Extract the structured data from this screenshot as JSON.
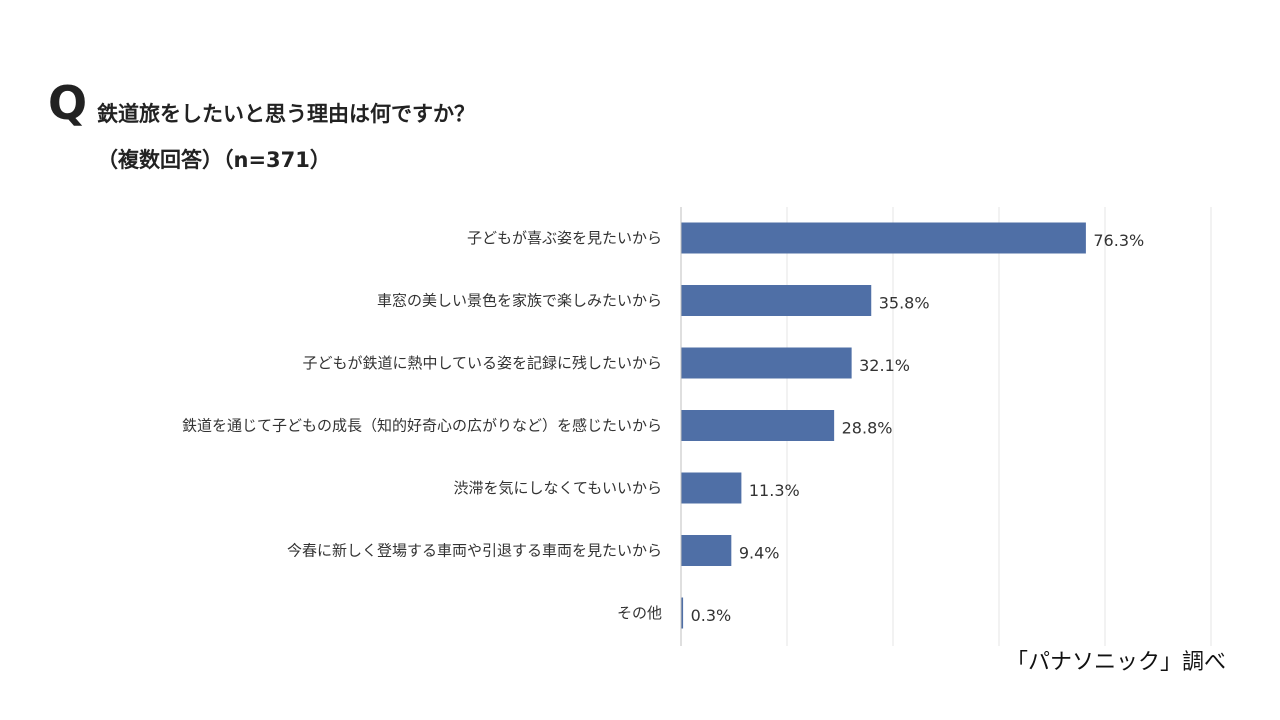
{
  "header": {
    "q_mark": "Q",
    "title": "鉄道旅をしたいと思う理由は何ですか？",
    "subtitle": "（複数回答）（n=371）"
  },
  "source": "「パナソニック」調べ",
  "colors": {
    "bar": "#4f6fa6",
    "grid": "#e4e4e4",
    "axis": "#bfbfbf",
    "text": "#333333"
  },
  "chart_data": {
    "type": "bar",
    "orientation": "horizontal",
    "categories": [
      "子どもが喜ぶ姿を見たいから",
      "車窓の美しい景色を家族で楽しみたいから",
      "子どもが鉄道に熱中している姿を記録に残したいから",
      "鉄道を通じて子どもの成長（知的好奇心の広がりなど）を感じたいから",
      "渋滞を気にしなくてもいいから",
      "今春に新しく登場する車両や引退する車両を見たいから",
      "その他"
    ],
    "values": [
      76.3,
      35.8,
      32.1,
      28.8,
      11.3,
      9.4,
      0.3
    ],
    "value_labels": [
      "76.3%",
      "35.8%",
      "32.1%",
      "28.8%",
      "11.3%",
      "9.4%",
      "0.3%"
    ],
    "xlim": [
      0,
      100
    ],
    "grid": true,
    "legend": "none"
  }
}
